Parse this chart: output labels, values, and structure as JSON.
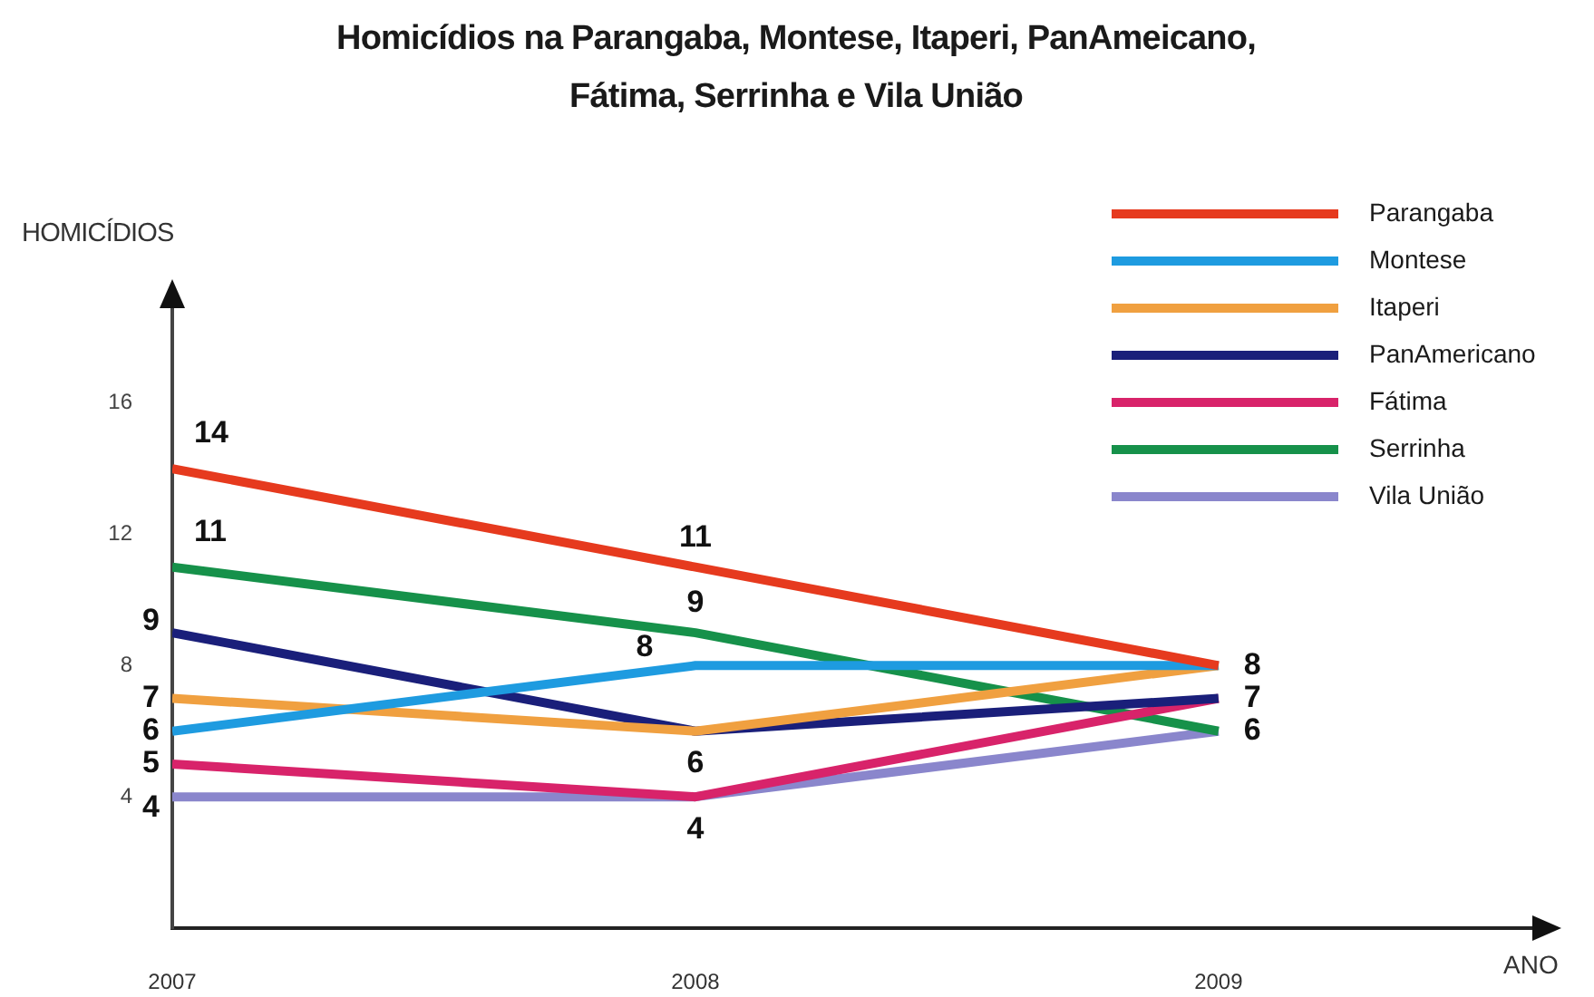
{
  "chart_data": {
    "type": "line",
    "title": "Homicídios na Parangaba, Montese, Itaperi, PanAmeicano, Fátima, Serrinha e Vila União",
    "xlabel": "ANO",
    "ylabel": "HOMICÍDIOS",
    "x": [
      2007,
      2008,
      2009
    ],
    "xlim": [
      2007,
      2009.6
    ],
    "xticks": [
      2007,
      2008,
      2009
    ],
    "ylim": [
      0,
      19
    ],
    "yticks": [
      4,
      8,
      12,
      16
    ],
    "series": [
      {
        "name": "Parangaba",
        "color": "#e63a1e",
        "values": [
          14,
          11,
          8
        ],
        "value_labels": [
          "14",
          "11",
          "8"
        ]
      },
      {
        "name": "Montese",
        "color": "#1e9be0",
        "values": [
          6,
          8,
          8
        ],
        "value_labels": [
          "6",
          "8",
          null
        ]
      },
      {
        "name": "Itaperi",
        "color": "#f0a040",
        "values": [
          7,
          6,
          8
        ],
        "value_labels": [
          "7",
          null,
          null
        ]
      },
      {
        "name": "PanAmericano",
        "color": "#1a1f7a",
        "values": [
          9,
          6,
          7
        ],
        "value_labels": [
          "9",
          "6",
          "7"
        ]
      },
      {
        "name": "Fátima",
        "color": "#d8236a",
        "values": [
          5,
          4,
          7
        ],
        "value_labels": [
          "5",
          null,
          null
        ]
      },
      {
        "name": "Serrinha",
        "color": "#16914a",
        "values": [
          11,
          9,
          6
        ],
        "value_labels": [
          "11",
          "9",
          "6"
        ]
      },
      {
        "name": "Vila União",
        "color": "#8a86cc",
        "values": [
          4,
          4,
          6
        ],
        "value_labels": [
          "4",
          "4",
          null
        ]
      }
    ],
    "legend": "top right",
    "grid": false,
    "marker": "none",
    "line_style": "solid"
  }
}
